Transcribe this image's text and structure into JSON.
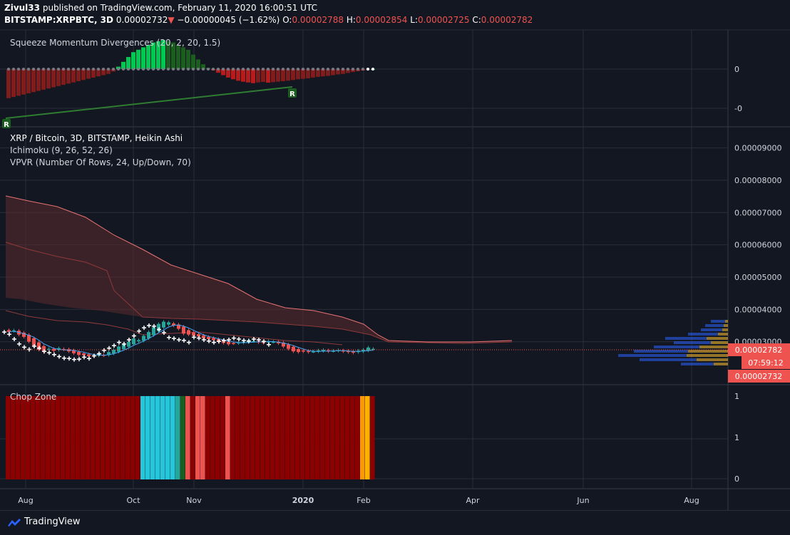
{
  "header": {
    "author": "Zivul33",
    "published_text": "published on TradingView.com, February 11, 2020 16:00:51 UTC",
    "symbol": "BITSTAMP:XRPBTC, 3D",
    "last": "0.00002732",
    "change_arrow": "▼",
    "change": "−0.00000045 (−1.62%)",
    "o_label": "O:",
    "o": "0.00002788",
    "h_label": "H:",
    "h": "0.00002854",
    "l_label": "L:",
    "l": "0.00002725",
    "c_label": "C:",
    "c": "0.00002782"
  },
  "panes": {
    "squeeze_title": "Squeeze Momentum Divergences (20, 2, 20, 1.5)",
    "main_title": "XRP / Bitcoin, 3D, BITSTAMP, Heikin Ashi",
    "ichimoku_title": "Ichimoku (9, 26, 52, 26)",
    "vpvr_title": "VPVR (Number Of Rows, 24, Up/Down, 70)",
    "chop_title": "Chop Zone"
  },
  "squeeze_axis": [
    "0",
    "-0"
  ],
  "chop_axis": [
    "1",
    "1",
    "0"
  ],
  "divergence_marker": "R",
  "badges": {
    "price_1": "0.00002782",
    "countdown": "07:59:12",
    "price_2": "0.00002732"
  },
  "time_axis": [
    {
      "label": "Aug",
      "bold": false
    },
    {
      "label": "Oct",
      "bold": false
    },
    {
      "label": "Nov",
      "bold": false
    },
    {
      "label": "2020",
      "bold": true
    },
    {
      "label": "Feb",
      "bold": false
    },
    {
      "label": "Apr",
      "bold": false
    },
    {
      "label": "Jun",
      "bold": false
    },
    {
      "label": "Aug",
      "bold": false
    }
  ],
  "brand": "TradingView",
  "colors": {
    "background": "#131722",
    "up": "#26a69a",
    "down": "#ef5350",
    "chop_dark_red": "#8b0000",
    "chop_cyan": "#26c6da",
    "chop_orange": "#ff9800",
    "squeeze_green": "#00c853",
    "squeeze_red": "#b71c1c"
  },
  "chart_data": {
    "type": "candlestick",
    "title": "XRP / Bitcoin, 3D, BITSTAMP, Heikin Ashi",
    "y_ticks": [
      "0.00009000",
      "0.00008000",
      "0.00007000",
      "0.00006000",
      "0.00005000",
      "0.00004000",
      "0.00003000"
    ],
    "ylim": [
      2e-05,
      9.5e-05
    ],
    "x_ticks": [
      "Aug",
      "Oct",
      "Nov",
      "2020",
      "Feb",
      "Apr",
      "Jun",
      "Aug"
    ],
    "last_close": 2.782e-05,
    "series": [
      {
        "name": "Heikin Ashi",
        "close": [
          3.3e-05,
          3.35e-05,
          3.22e-05,
          3.15e-05,
          3e-05,
          2.85e-05,
          2.75e-05,
          2.68e-05,
          2.78e-05,
          2.72e-05,
          2.8e-05,
          2.76e-05,
          2.7e-05,
          2.64e-05,
          2.59e-05,
          2.58e-05,
          2.55e-05,
          2.56e-05,
          2.62e-05,
          2.58e-05,
          2.68e-05,
          2.75e-05,
          2.85e-05,
          2.92e-05,
          3e-05,
          3.1e-05,
          3.05e-05,
          3.18e-05,
          3.3e-05,
          3.45e-05,
          3.55e-05,
          3.62e-05,
          3.6e-05,
          3.5e-05,
          3.4e-05,
          3.25e-05,
          3.22e-05,
          3.18e-05,
          3.16e-05,
          3.1e-05,
          3.08e-05,
          3.05e-05,
          3e-05,
          2.96e-05,
          2.92e-05,
          2.95e-05,
          2.98e-05,
          3e-05,
          3.05e-05,
          3.02e-05,
          2.98e-05,
          2.96e-05,
          3.02e-05,
          3e-05,
          2.95e-05,
          2.85e-05,
          2.78e-05,
          2.7e-05,
          2.68e-05,
          2.7e-05,
          2.68e-05,
          2.7e-05,
          2.73e-05,
          2.75e-05,
          2.7e-05,
          2.72e-05,
          2.74e-05,
          2.7e-05,
          2.68e-05,
          2.66e-05,
          2.72e-05,
          2.75e-05,
          2.82e-05,
          2.78e-05
        ]
      }
    ],
    "squeeze_momentum": [
      -12,
      -11.5,
      -11,
      -10.5,
      -10,
      -9.5,
      -9,
      -8.5,
      -8,
      -7.5,
      -7,
      -6.5,
      -6,
      -5.5,
      -5,
      -4.5,
      -4,
      -3.5,
      -3,
      -2.5,
      -2,
      -1,
      1,
      3,
      5,
      7,
      8,
      9,
      10,
      11,
      11.5,
      12,
      11.5,
      11,
      10,
      9,
      8,
      6,
      4,
      2,
      0.5,
      -0.5,
      -1.5,
      -2.5,
      -3.5,
      -4.2,
      -4.8,
      -5.2,
      -5.5,
      -5.8,
      -5.5,
      -5.3,
      -5.6,
      -5.4,
      -5.2,
      -5,
      -4.8,
      -4.5,
      -4.2,
      -4,
      -3.8,
      -3.5,
      -3.2,
      -3,
      -2.8,
      -2.5,
      -2.2,
      -2,
      -1.6,
      -1.2,
      -0.9,
      -0.6,
      -0.3,
      0
    ]
  }
}
